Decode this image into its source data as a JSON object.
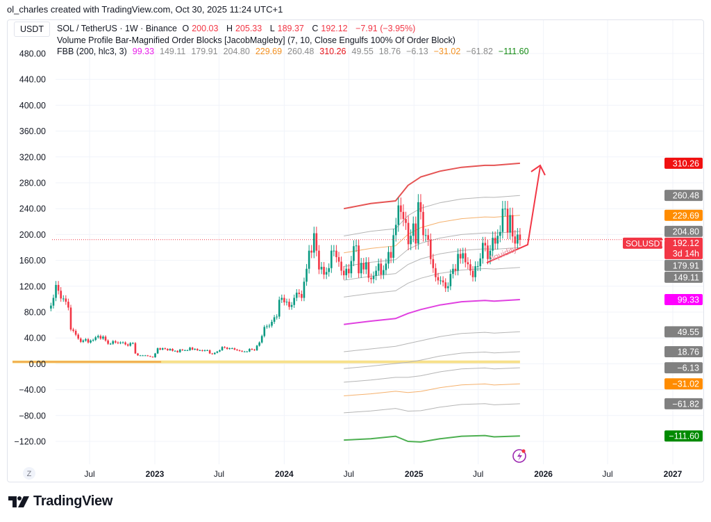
{
  "attribution": "ol_charles created with TradingView.com, Oct 30, 2025 11:24 UTC+1",
  "currency": "USDT",
  "legend": {
    "symbol": "SOL / TetherUS · 1W · Binance",
    "open_label": "O",
    "open": "200.03",
    "high_label": "H",
    "high": "205.33",
    "low_label": "L",
    "low": "189.37",
    "close_label": "C",
    "close": "192.12",
    "change": "−7.91 (−3.95%)",
    "indicator1": "Volume Profile Bar-Magnified Order Blocks [JacobMagleby] (7, 10, Close Engulfs 100% Of Order Block)",
    "indicator2": "FBB (200, hlc3, 3)",
    "fbb_values": [
      {
        "text": "99.33",
        "color": "#e91ee9"
      },
      {
        "text": "149.11",
        "color": "#8a8a8a"
      },
      {
        "text": "179.91",
        "color": "#8a8a8a"
      },
      {
        "text": "204.80",
        "color": "#8a8a8a"
      },
      {
        "text": "229.69",
        "color": "#f39020"
      },
      {
        "text": "260.48",
        "color": "#8a8a8a"
      },
      {
        "text": "310.26",
        "color": "#e5141a"
      },
      {
        "text": "49.55",
        "color": "#8a8a8a"
      },
      {
        "text": "18.76",
        "color": "#8a8a8a"
      },
      {
        "text": "−6.13",
        "color": "#8a8a8a"
      },
      {
        "text": "−31.02",
        "color": "#f39020"
      },
      {
        "text": "−61.82",
        "color": "#8a8a8a"
      },
      {
        "text": "−111.60",
        "color": "#138a13"
      }
    ]
  },
  "chart_data": {
    "type": "candlestick",
    "interval": "1W",
    "first_week": "2022-03-14",
    "closes": [
      90,
      102,
      122,
      113,
      101,
      101,
      96,
      87,
      53,
      51,
      45,
      39,
      34,
      36,
      38,
      33,
      36,
      37,
      41,
      43,
      39,
      42,
      36,
      31,
      31,
      35,
      33,
      32,
      33,
      33,
      30,
      28,
      32,
      32,
      16,
      13,
      13,
      13,
      13,
      12,
      11,
      10,
      16,
      24,
      22,
      24,
      23,
      21,
      23,
      20,
      20,
      18,
      22,
      21,
      21,
      21,
      25,
      22,
      23,
      21,
      21,
      20,
      21,
      21,
      16,
      15,
      17,
      19,
      21,
      26,
      25,
      23,
      24,
      24,
      22,
      21,
      20,
      19,
      19,
      19,
      23,
      22,
      21,
      28,
      33,
      43,
      57,
      58,
      59,
      65,
      72,
      73,
      99,
      102,
      95,
      96,
      88,
      91,
      102,
      110,
      108,
      102,
      127,
      147,
      175,
      172,
      202,
      175,
      146,
      150,
      138,
      142,
      148,
      175,
      175,
      165,
      158,
      144,
      137,
      147,
      140,
      159,
      182,
      183,
      140,
      156,
      146,
      157,
      133,
      131,
      136,
      144,
      155,
      138,
      145,
      155,
      173,
      164,
      199,
      215,
      245,
      235,
      224,
      218,
      185,
      198,
      217,
      186,
      250,
      235,
      199,
      199,
      192,
      162,
      148,
      134,
      129,
      129,
      126,
      117,
      120,
      139,
      147,
      144,
      170,
      163,
      171,
      157,
      154,
      144,
      134,
      151,
      151,
      163,
      187,
      183,
      162,
      175,
      195,
      186,
      198,
      204,
      240,
      240,
      203,
      230,
      197,
      186,
      200,
      192.12
    ],
    "last_price": 192.12,
    "last_price_label": "SOLUSDT",
    "countdown": "3d 14h",
    "candle_colors": {
      "up": "#089981",
      "down": "#f23645"
    },
    "y_ticks": [
      "480.00",
      "440.00",
      "400.00",
      "360.00",
      "320.00",
      "280.00",
      "240.00",
      "200.00",
      "160.00",
      "120.00",
      "80.00",
      "40.00",
      "0.00",
      "−40.00",
      "−80.00",
      "−120.00"
    ],
    "y_tick_values": [
      480,
      440,
      400,
      360,
      320,
      280,
      240,
      200,
      160,
      120,
      80,
      40,
      0,
      -40,
      -80,
      -120
    ],
    "ylim": [
      -140,
      500
    ],
    "x_ticks": [
      {
        "label": "Jul",
        "date": "2022-07-01",
        "bold": false
      },
      {
        "label": "2023",
        "date": "2023-01-01",
        "bold": true
      },
      {
        "label": "Jul",
        "date": "2023-07-01",
        "bold": false
      },
      {
        "label": "2024",
        "date": "2024-01-01",
        "bold": true
      },
      {
        "label": "Jul",
        "date": "2024-07-01",
        "bold": false
      },
      {
        "label": "2025",
        "date": "2025-01-01",
        "bold": true
      },
      {
        "label": "Jul",
        "date": "2025-07-01",
        "bold": false
      },
      {
        "label": "2026",
        "date": "2026-01-01",
        "bold": true
      },
      {
        "label": "Jul",
        "date": "2026-07-01",
        "bold": false
      },
      {
        "label": "2027",
        "date": "2027-01-01",
        "bold": true
      }
    ],
    "timezone_button": "Z",
    "fbb": {
      "levels": [
        {
          "fib": 1,
          "side": 1,
          "color": "#e55353",
          "value": 310.26,
          "label": "310.26"
        },
        {
          "fib": 0.764,
          "side": 1,
          "color": "#b5b5b5",
          "value": 260.48,
          "label": "260.48"
        },
        {
          "fib": 0.618,
          "side": 1,
          "color": "#f5b06b",
          "value": 229.69,
          "label": "229.69"
        },
        {
          "fib": 0.5,
          "side": 1,
          "color": "#b5b5b5",
          "value": 204.8,
          "label": "204.80"
        },
        {
          "fib": 0.382,
          "side": 1,
          "color": "#b5b5b5",
          "value": 179.91,
          "label": "179.91"
        },
        {
          "fib": 0.236,
          "side": 1,
          "color": "#b5b5b5",
          "value": 149.11,
          "label": "149.11"
        },
        {
          "fib": 0,
          "side": 0,
          "color": "#e040e0",
          "value": 99.33,
          "label": "99.33"
        },
        {
          "fib": 0.236,
          "side": -1,
          "color": "#b5b5b5",
          "value": 49.55,
          "label": "49.55"
        },
        {
          "fib": 0.382,
          "side": -1,
          "color": "#b5b5b5",
          "value": 18.76,
          "label": "18.76"
        },
        {
          "fib": 0.5,
          "side": -1,
          "color": "#b5b5b5",
          "value": -6.13,
          "label": "−6.13"
        },
        {
          "fib": 0.618,
          "side": -1,
          "color": "#f5b06b",
          "value": -31.02,
          "label": "−31.02"
        },
        {
          "fib": 0.764,
          "side": -1,
          "color": "#b5b5b5",
          "value": -61.82,
          "label": "−61.82"
        },
        {
          "fib": 1,
          "side": -1,
          "color": "#4caf50",
          "value": -111.6,
          "label": "−111.60"
        }
      ],
      "badge_colors": [
        "#f01010",
        "#808080",
        "#ff8c00",
        "#808080",
        "#808080",
        "#808080",
        "#ff00ff",
        "#808080",
        "#808080",
        "#808080",
        "#ff8c00",
        "#808080",
        "#008a00"
      ],
      "basis_width": [
        {
          "date": "2024-06-17",
          "basis": 61,
          "width": 179
        },
        {
          "date": "2024-09-01",
          "basis": 66,
          "width": 182
        },
        {
          "date": "2024-11-10",
          "basis": 70,
          "width": 182
        },
        {
          "date": "2024-12-15",
          "basis": 78,
          "width": 198
        },
        {
          "date": "2025-01-20",
          "basis": 84,
          "width": 205
        },
        {
          "date": "2025-03-15",
          "basis": 91,
          "width": 207
        },
        {
          "date": "2025-05-15",
          "basis": 96,
          "width": 208
        },
        {
          "date": "2025-07-20",
          "basis": 98,
          "width": 209
        },
        {
          "date": "2025-08-15",
          "basis": 97,
          "width": 210
        },
        {
          "date": "2025-10-27",
          "basis": 99.33,
          "width": 210.93
        }
      ]
    },
    "order_block": {
      "price": 3,
      "start": "2022-03-14",
      "active_from": "2022-11-21",
      "end": "2025-10-27",
      "colors": [
        "#f0a040",
        "#f7e08a"
      ]
    },
    "annotations": {
      "text": "liquidity",
      "color": "#f23645"
    }
  },
  "branding": "TradingView"
}
